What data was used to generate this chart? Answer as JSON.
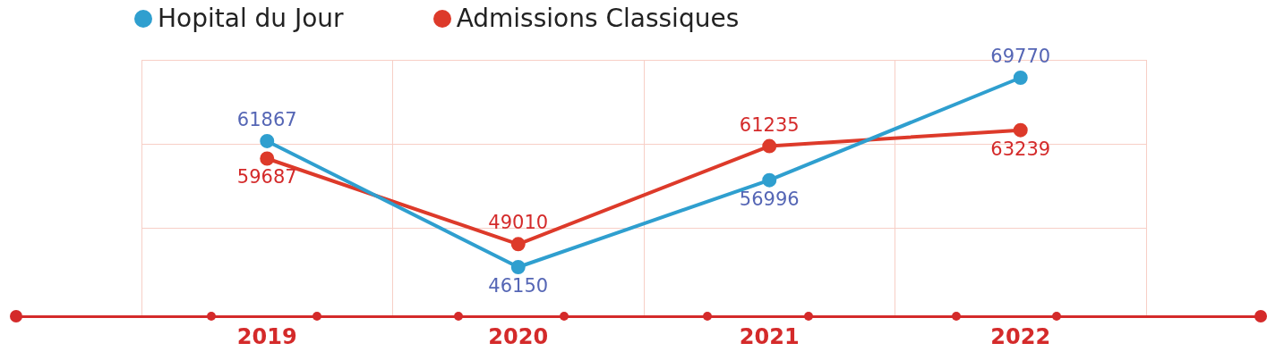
{
  "chart_data": {
    "type": "line",
    "categories": [
      "2019",
      "2020",
      "2021",
      "2022"
    ],
    "series": [
      {
        "name": "Hopital du Jour",
        "color": "#2f9fcf",
        "values": [
          61867,
          46150,
          56996,
          69770
        ]
      },
      {
        "name": "Admissions Classiques",
        "color": "#dd3a2a",
        "values": [
          59687,
          49010,
          61235,
          63239
        ]
      }
    ],
    "ylim": [
      40000,
      72000
    ],
    "yticks": [
      {
        "value": 51000,
        "label": null
      },
      {
        "value": 61500,
        "label": null
      },
      {
        "value": 72000,
        "label": null
      }
    ],
    "tick_labels": "x",
    "grid": true,
    "legend": "top left",
    "marker": "circle",
    "line_style": "solid",
    "data_labels": true
  }
}
